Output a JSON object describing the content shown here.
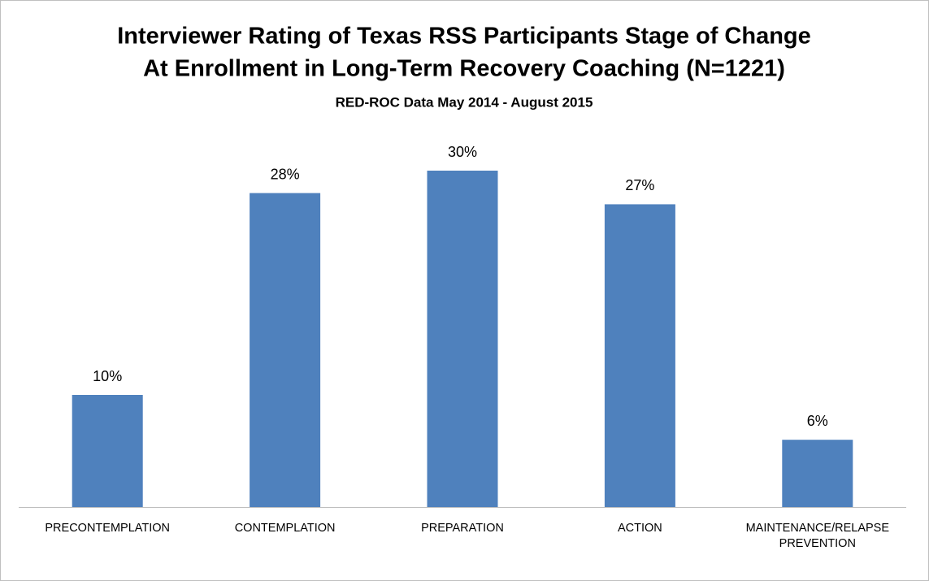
{
  "chart_data": {
    "type": "bar",
    "title": [
      "Interviewer Rating of Texas RSS Participants Stage of Change",
      "At Enrollment in Long-Term Recovery Coaching (N=1221)"
    ],
    "subtitle": "RED-ROC Data May 2014 - August 2015",
    "categories": [
      "PRECONTEMPLATION",
      "CONTEMPLATION",
      "PREPARATION",
      "ACTION",
      "MAINTENANCE/RELAPSE PREVENTION"
    ],
    "values": [
      10,
      28,
      30,
      27,
      6
    ],
    "value_labels": [
      "10%",
      "28%",
      "30%",
      "27%",
      "6%"
    ],
    "color": "#4f81bd"
  }
}
